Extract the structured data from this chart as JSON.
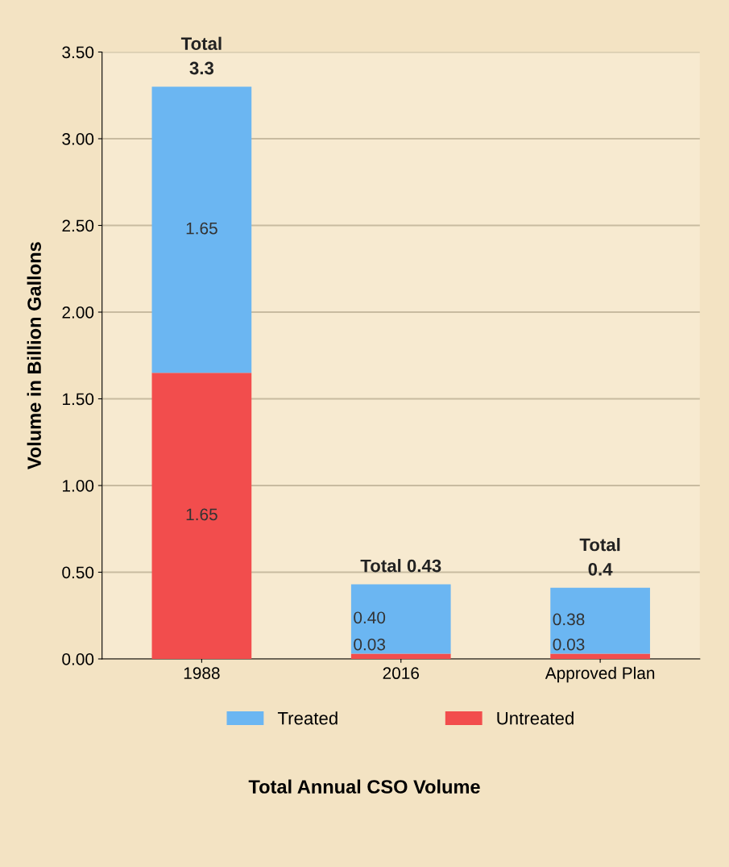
{
  "chart_data": {
    "type": "bar",
    "stacked": true,
    "annotations": [
      "Total Annual CSO Volume"
    ],
    "ylabel": "Volume in Billion Gallons",
    "categories": [
      "1988",
      "2016",
      "Approved Plan"
    ],
    "series": [
      {
        "name": "Untreated",
        "color": "#f24d4d",
        "values": [
          1.65,
          0.03,
          0.03
        ],
        "value_labels": [
          "1.65",
          "0.03",
          "0.03"
        ]
      },
      {
        "name": "Treated",
        "color": "#6bb6f2",
        "values": [
          1.65,
          0.4,
          0.38
        ],
        "value_labels": [
          "1.65",
          "0.40",
          "0.38"
        ]
      }
    ],
    "totals": [
      "Total\n3.3",
      "Total 0.43",
      "Total\n0.4"
    ],
    "ylim": [
      0,
      3.5
    ],
    "yticks": [
      {
        "value": 0,
        "label": "0.00"
      },
      {
        "value": 0.5,
        "label": "0.50"
      },
      {
        "value": 1,
        "label": "1.00"
      },
      {
        "value": 1.5,
        "label": "1.50"
      },
      {
        "value": 2,
        "label": "2.00"
      },
      {
        "value": 2.5,
        "label": "2.50"
      },
      {
        "value": 3,
        "label": "3.00"
      },
      {
        "value": 3.5,
        "label": "3.50"
      }
    ],
    "grid": "y",
    "legend": "bottom"
  }
}
